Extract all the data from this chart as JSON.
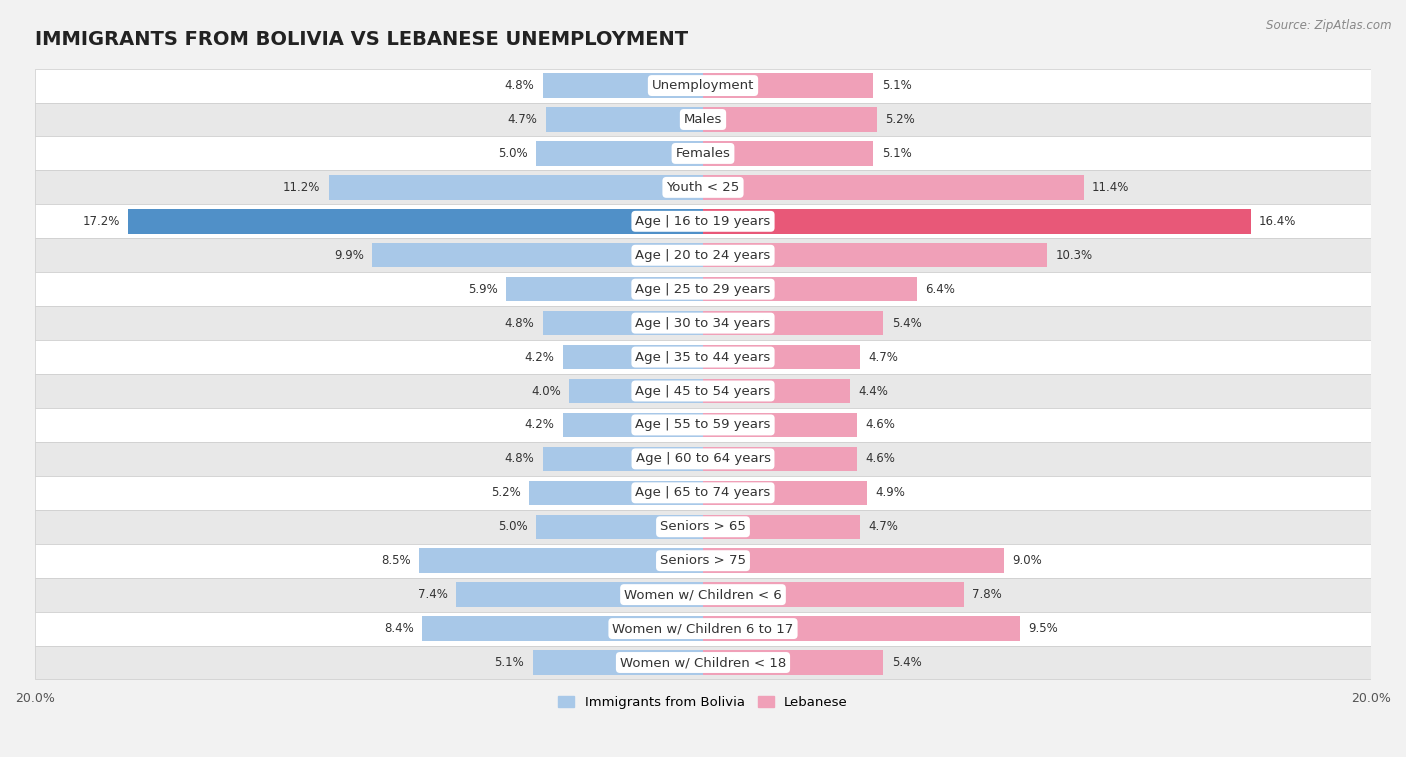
{
  "title": "IMMIGRANTS FROM BOLIVIA VS LEBANESE UNEMPLOYMENT",
  "source": "Source: ZipAtlas.com",
  "categories": [
    "Unemployment",
    "Males",
    "Females",
    "Youth < 25",
    "Age | 16 to 19 years",
    "Age | 20 to 24 years",
    "Age | 25 to 29 years",
    "Age | 30 to 34 years",
    "Age | 35 to 44 years",
    "Age | 45 to 54 years",
    "Age | 55 to 59 years",
    "Age | 60 to 64 years",
    "Age | 65 to 74 years",
    "Seniors > 65",
    "Seniors > 75",
    "Women w/ Children < 6",
    "Women w/ Children 6 to 17",
    "Women w/ Children < 18"
  ],
  "bolivia_values": [
    4.8,
    4.7,
    5.0,
    11.2,
    17.2,
    9.9,
    5.9,
    4.8,
    4.2,
    4.0,
    4.2,
    4.8,
    5.2,
    5.0,
    8.5,
    7.4,
    8.4,
    5.1
  ],
  "lebanese_values": [
    5.1,
    5.2,
    5.1,
    11.4,
    16.4,
    10.3,
    6.4,
    5.4,
    4.7,
    4.4,
    4.6,
    4.6,
    4.9,
    4.7,
    9.0,
    7.8,
    9.5,
    5.4
  ],
  "bolivia_color": "#a8c8e8",
  "lebanese_color": "#f0a0b8",
  "bolivia_highlight_color": "#5090c8",
  "lebanese_highlight_color": "#e85878",
  "background_color": "#f2f2f2",
  "row_bg_white": "#ffffff",
  "row_bg_gray": "#e8e8e8",
  "row_border_color": "#cccccc",
  "xlim": 20.0,
  "bar_height": 0.72,
  "title_fontsize": 14,
  "label_fontsize": 9.5,
  "value_fontsize": 8.5,
  "legend_labels": [
    "Immigrants from Bolivia",
    "Lebanese"
  ],
  "highlight_rows": [
    4
  ]
}
